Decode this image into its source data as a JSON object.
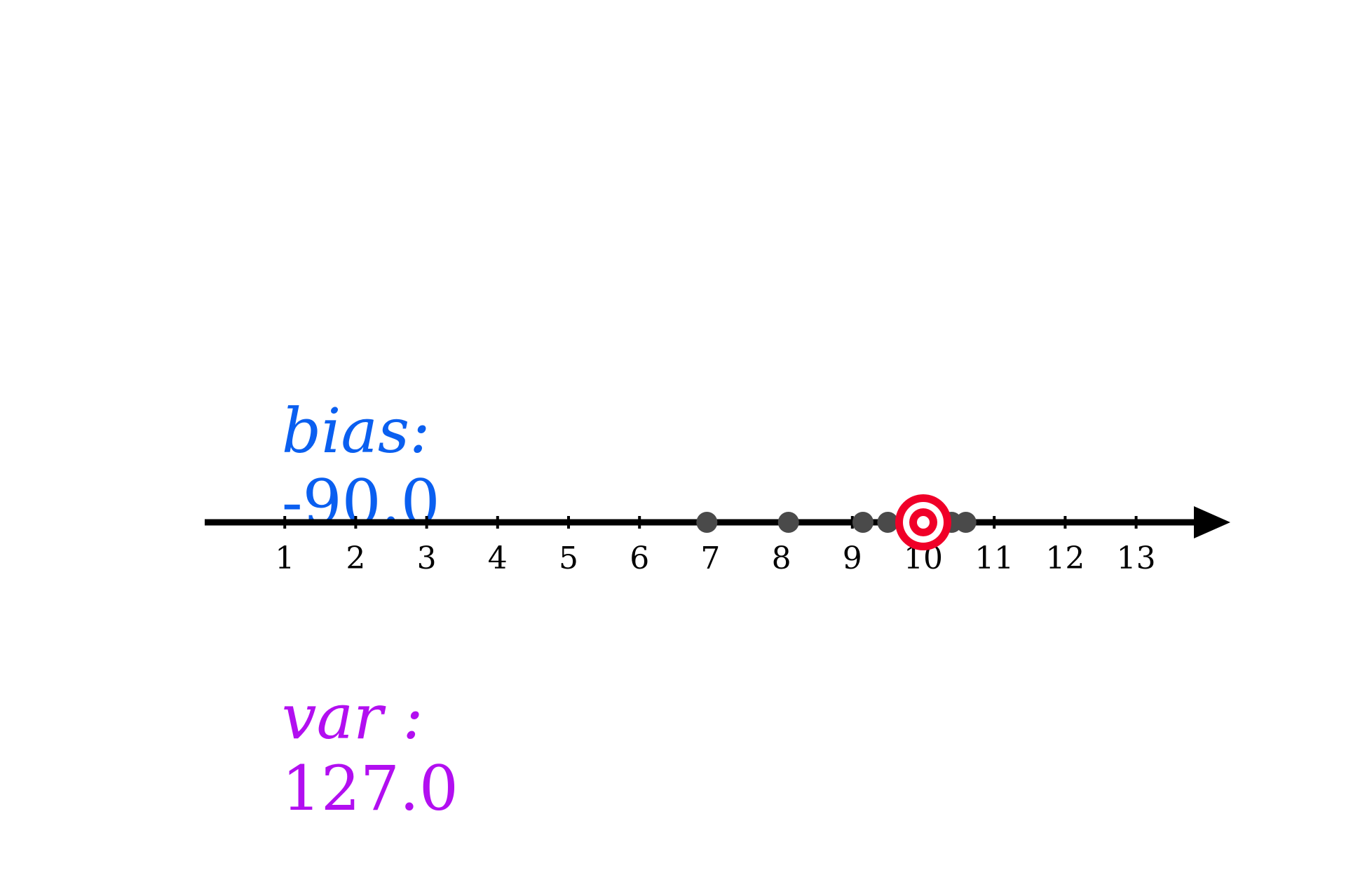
{
  "stats": {
    "bias": {
      "label": "bias:",
      "value": "-90.0",
      "color": "#0a5ff0"
    },
    "var": {
      "label": "var :",
      "value": "127.0",
      "color": "#b20ff0"
    }
  },
  "axis": {
    "ticks": [
      "1",
      "2",
      "3",
      "4",
      "5",
      "6",
      "7",
      "8",
      "9",
      "10",
      "11",
      "12",
      "13"
    ],
    "tick_values": [
      1,
      2,
      3,
      4,
      5,
      6,
      7,
      8,
      9,
      10,
      11,
      12,
      13
    ],
    "line_color": "#000000"
  },
  "target": {
    "value": 10.0,
    "color": "#f00028",
    "icon": "target-bullseye-icon"
  },
  "samples": {
    "color": "#4a4a4a",
    "values": [
      6.95,
      8.1,
      9.15,
      9.5,
      9.75,
      10.4,
      10.6
    ]
  }
}
